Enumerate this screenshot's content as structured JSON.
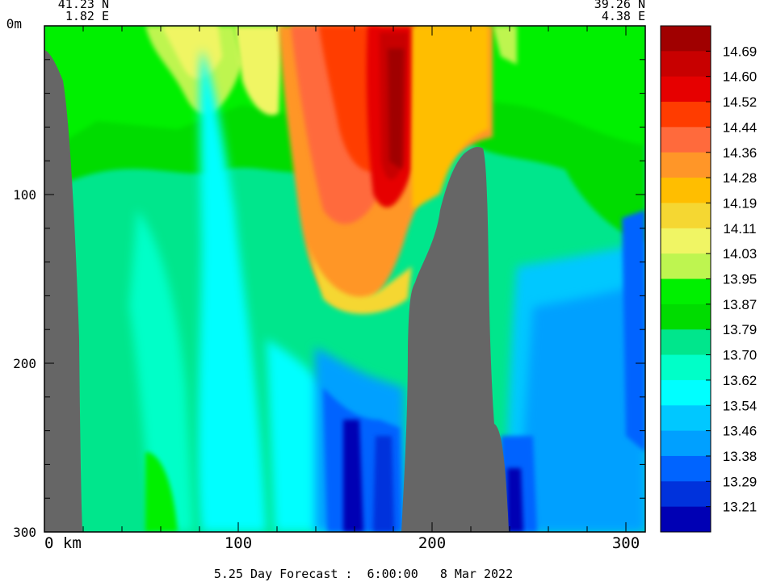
{
  "chart_data": {
    "type": "heatmap",
    "title": "",
    "footer": "5.25 Day Forecast :  6:00:00   8 Mar 2022",
    "start_point": {
      "lat": "41.23 N",
      "lon": "1.82 E"
    },
    "end_point": {
      "lat": "39.26 N",
      "lon": "4.38 E"
    },
    "x_axis": {
      "unit": "km",
      "range": [
        0,
        310
      ],
      "ticks": [
        0,
        100,
        200,
        300
      ],
      "tick_labels": [
        "0 km",
        "100",
        "200",
        "300"
      ]
    },
    "y_axis": {
      "unit": "m",
      "range": [
        0,
        300
      ],
      "inverted": true,
      "ticks": [
        0,
        100,
        200,
        300
      ],
      "tick_labels": [
        "0m",
        "100",
        "200",
        "300"
      ]
    },
    "colorbar": {
      "labels": [
        "14.69",
        "14.60",
        "14.52",
        "14.44",
        "14.36",
        "14.28",
        "14.19",
        "14.11",
        "14.03",
        "13.95",
        "13.87",
        "13.79",
        "13.70",
        "13.62",
        "13.54",
        "13.46",
        "13.38",
        "13.29",
        "13.21"
      ],
      "colors": [
        "#a00000",
        "#c80000",
        "#e60000",
        "#ff3c00",
        "#ff6a3c",
        "#ff9628",
        "#ffbe00",
        "#f5d732",
        "#f0f564",
        "#bef550",
        "#00f000",
        "#00dc00",
        "#00e68c",
        "#00ffc8",
        "#00ffff",
        "#00c8ff",
        "#00a0ff",
        "#0064ff",
        "#0032dc",
        "#0000b4"
      ]
    },
    "land_color": "#666666",
    "grid": false
  }
}
